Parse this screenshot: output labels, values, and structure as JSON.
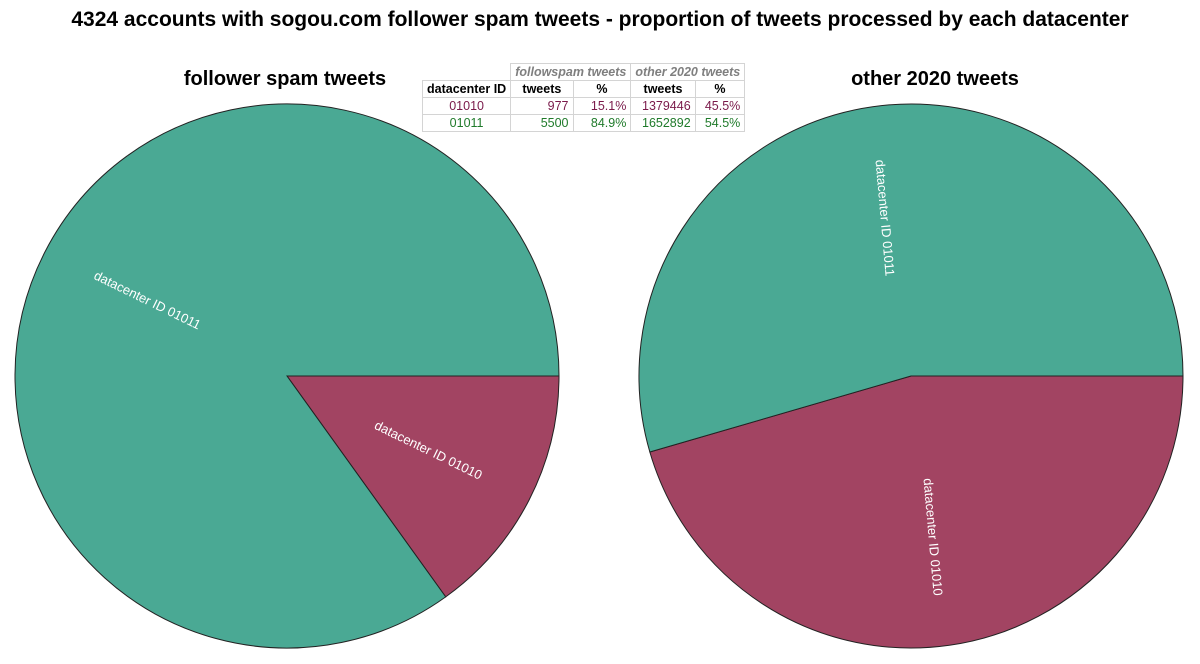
{
  "title": "4324 accounts with sogou.com follower spam tweets - proportion of tweets processed by each datacenter",
  "chart_data": [
    {
      "type": "pie",
      "title": "follower spam tweets",
      "slices": [
        {
          "label": "datacenter ID 01010",
          "value": 977,
          "percent": 15.1,
          "color": "#a24462"
        },
        {
          "label": "datacenter ID 01011",
          "value": 5500,
          "percent": 84.9,
          "color": "#4aa994"
        }
      ]
    },
    {
      "type": "pie",
      "title": "other 2020 tweets",
      "slices": [
        {
          "label": "datacenter ID 01010",
          "value": 1379446,
          "percent": 45.5,
          "color": "#a24462"
        },
        {
          "label": "datacenter ID 01011",
          "value": 1652892,
          "percent": 54.5,
          "color": "#4aa994"
        }
      ]
    }
  ],
  "table": {
    "group_headers": [
      "followspam tweets",
      "other 2020 tweets"
    ],
    "col_headers": [
      "datacenter ID",
      "tweets",
      "%",
      "tweets",
      "%"
    ],
    "rows": [
      {
        "id": "01010",
        "spam_tweets": "977",
        "spam_pct": "15.1%",
        "other_tweets": "1379446",
        "other_pct": "45.5%",
        "color": "#7a1a4a"
      },
      {
        "id": "01011",
        "spam_tweets": "5500",
        "spam_pct": "84.9%",
        "other_tweets": "1652892",
        "other_pct": "54.5%",
        "color": "#1f7a2a"
      }
    ]
  }
}
